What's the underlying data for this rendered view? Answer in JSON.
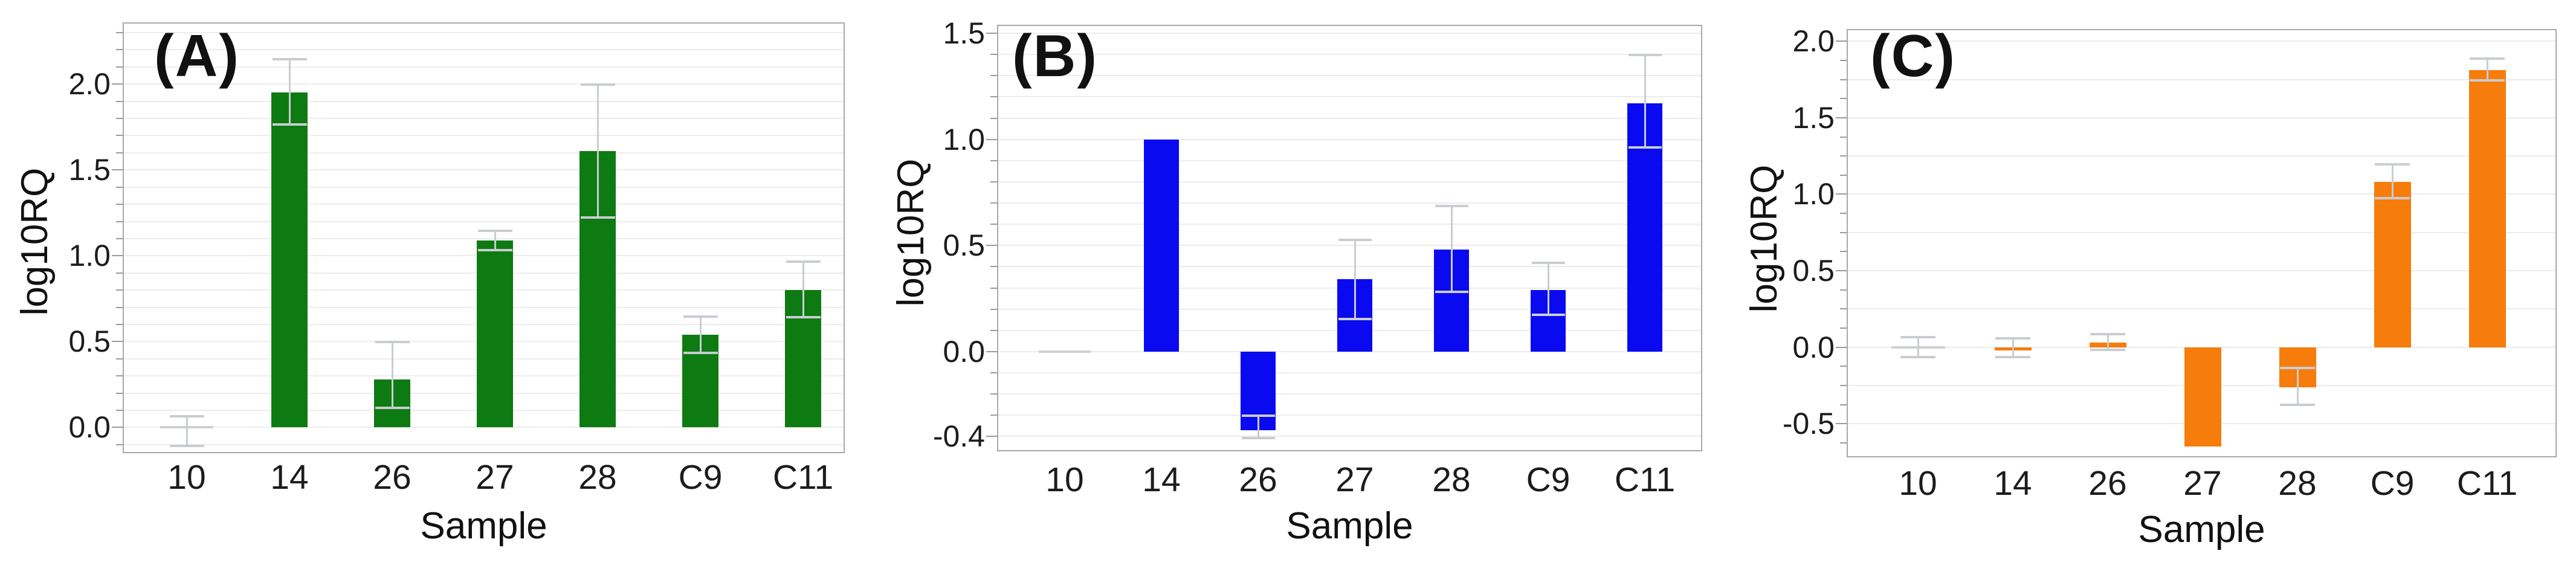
{
  "figure": {
    "ylabel": "log10RQ",
    "xlabel": "Sample",
    "categories": [
      "10",
      "14",
      "26",
      "27",
      "28",
      "C9",
      "C11"
    ]
  },
  "colors": {
    "panel_a_bar": "#0e7a12",
    "panel_b_bar": "#0a0af0",
    "panel_c_bar": "#f67c0c",
    "error_bar": "#c9cdd2",
    "zero_marker": "#cfcfcf",
    "plot_border": "#a9a9a9",
    "gridline": "#ececec",
    "text": "#1c1c1c"
  },
  "chart_data": [
    {
      "type": "bar",
      "panel_label": "(A)",
      "xlabel": "Sample",
      "ylabel": "log10RQ",
      "bar_color": "#0e7a12",
      "categories": [
        "10",
        "14",
        "26",
        "27",
        "28",
        "C9",
        "C11"
      ],
      "values": [
        0.0,
        1.95,
        0.28,
        1.09,
        1.61,
        0.54,
        0.8
      ],
      "error_low": [
        -0.11,
        1.76,
        0.11,
        1.03,
        1.22,
        0.43,
        0.64
      ],
      "error_high": [
        0.07,
        2.15,
        0.5,
        1.15,
        2.0,
        0.65,
        0.97
      ],
      "ylim": [
        -0.15,
        2.36
      ],
      "yticks": [
        "0.0",
        "0.5",
        "1.0",
        "1.5",
        "2.0"
      ],
      "ytick_values": [
        0.0,
        0.5,
        1.0,
        1.5,
        2.0
      ],
      "grid_step": 0.1,
      "minor_tick_step": 0.1,
      "grid": true,
      "legend": "none"
    },
    {
      "type": "bar",
      "panel_label": "(B)",
      "xlabel": "Sample",
      "ylabel": "log10RQ",
      "bar_color": "#0a0af0",
      "categories": [
        "10",
        "14",
        "26",
        "27",
        "28",
        "C9",
        "C11"
      ],
      "values": [
        0.0,
        1.0,
        -0.37,
        0.34,
        0.48,
        0.29,
        1.17
      ],
      "error_low": [
        null,
        null,
        -0.41,
        0.15,
        0.28,
        0.17,
        0.96
      ],
      "error_high": [
        null,
        null,
        -0.3,
        0.53,
        0.69,
        0.42,
        1.4
      ],
      "ylim": [
        -0.47,
        1.54
      ],
      "yticks": [
        "-0.4",
        "0.0",
        "0.5",
        "1.0",
        "1.5"
      ],
      "ytick_values": [
        -0.4,
        0.0,
        0.5,
        1.0,
        1.5
      ],
      "grid_step": 0.1,
      "minor_tick_step": 0.1,
      "grid": true,
      "legend": "none"
    },
    {
      "type": "bar",
      "panel_label": "(C)",
      "xlabel": "Sample",
      "ylabel": "log10RQ",
      "bar_color": "#f67c0c",
      "categories": [
        "10",
        "14",
        "26",
        "27",
        "28",
        "C9",
        "C11"
      ],
      "values": [
        0.0,
        -0.02,
        0.03,
        -0.65,
        -0.26,
        1.08,
        1.81
      ],
      "error_low": [
        -0.07,
        -0.07,
        -0.02,
        null,
        -0.38,
        0.97,
        1.74
      ],
      "error_high": [
        0.07,
        0.06,
        0.09,
        null,
        -0.13,
        1.2,
        1.89
      ],
      "ylim": [
        -0.72,
        2.08
      ],
      "yticks": [
        "-0.5",
        "0.0",
        "0.5",
        "1.0",
        "1.5",
        "2.0"
      ],
      "ytick_values": [
        -0.5,
        0.0,
        0.5,
        1.0,
        1.5,
        2.0
      ],
      "grid_step": 0.25,
      "minor_tick_step": 0.125,
      "grid": true,
      "legend": "none"
    }
  ]
}
